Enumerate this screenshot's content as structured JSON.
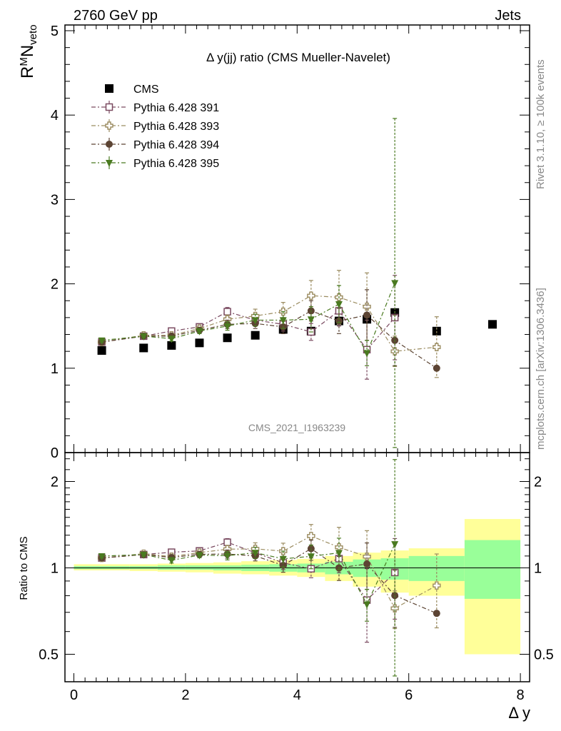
{
  "header": {
    "left": "2760 GeV pp",
    "right": "Jets"
  },
  "side_labels": {
    "rivet": "Rivet 3.1.10, ≥ 100k events",
    "mcplots": "mcplots.cern.ch [arXiv:1306.3436]"
  },
  "watermark": "CMS_2021_I1963239",
  "chart_data": {
    "type": "scatter",
    "title": "Δ y(jj) ratio (CMS Mueller-Navelet)",
    "ylabel": "R^M N_veto",
    "ylabel_parts": {
      "main": "R",
      "sup": "M",
      "main2": "N",
      "sub": "veto"
    },
    "xlabel": "Δ y",
    "xlim": [
      -0.2,
      8.0
    ],
    "ylim": [
      0,
      5.05
    ],
    "xticks": [
      "0",
      "2",
      "4",
      "6",
      "8"
    ],
    "yticks": [
      "0",
      "1",
      "2",
      "3",
      "4",
      "5"
    ],
    "legend_position": "top-left",
    "series": [
      {
        "name": "CMS",
        "color": "#000000",
        "marker": "square-filled",
        "x": [
          0.5,
          1.25,
          1.75,
          2.25,
          2.75,
          3.25,
          3.75,
          4.25,
          4.75,
          5.25,
          5.75,
          6.5,
          7.5
        ],
        "y": [
          1.21,
          1.24,
          1.27,
          1.3,
          1.36,
          1.39,
          1.46,
          1.44,
          1.56,
          1.58,
          1.66,
          1.44,
          1.52
        ]
      },
      {
        "name": "Pythia 6.428 391",
        "color": "#7a4a60",
        "marker": "square-open",
        "x": [
          0.5,
          1.25,
          1.75,
          2.25,
          2.75,
          3.25,
          3.75,
          4.25,
          4.75,
          5.25,
          5.75
        ],
        "y": [
          1.31,
          1.38,
          1.44,
          1.49,
          1.67,
          1.57,
          1.52,
          1.43,
          1.68,
          1.22,
          1.6
        ],
        "err": [
          0.02,
          0.02,
          0.03,
          0.03,
          0.05,
          0.06,
          0.08,
          0.1,
          0.18,
          0.35,
          0.5
        ]
      },
      {
        "name": "Pythia 6.428 393",
        "color": "#9b8c60",
        "marker": "cross-open",
        "x": [
          0.5,
          1.25,
          1.75,
          2.25,
          2.75,
          3.25,
          3.75,
          4.25,
          4.75,
          5.25,
          5.75,
          6.5
        ],
        "y": [
          1.31,
          1.39,
          1.39,
          1.47,
          1.58,
          1.62,
          1.67,
          1.86,
          1.84,
          1.73,
          1.2,
          1.25
        ],
        "err": [
          0.02,
          0.02,
          0.03,
          0.03,
          0.05,
          0.08,
          0.11,
          0.18,
          0.32,
          0.4,
          0.18,
          0.36
        ]
      },
      {
        "name": "Pythia 6.428 394",
        "color": "#5c4433",
        "marker": "circle-filled",
        "x": [
          0.5,
          1.25,
          1.75,
          2.25,
          2.75,
          3.25,
          3.75,
          4.25,
          4.75,
          5.25,
          5.75,
          6.5
        ],
        "y": [
          1.31,
          1.38,
          1.38,
          1.45,
          1.52,
          1.53,
          1.49,
          1.68,
          1.56,
          1.63,
          1.33,
          1.0
        ],
        "err": [
          0.02,
          0.02,
          0.03,
          0.03,
          0.05,
          0.06,
          0.08,
          0.12,
          0.15,
          0.3,
          0.3,
          0.01
        ]
      },
      {
        "name": "Pythia 6.428 395",
        "color": "#4a7a20",
        "marker": "triangle-down-filled",
        "x": [
          0.5,
          1.25,
          1.75,
          2.25,
          2.75,
          3.25,
          3.75,
          4.25,
          4.75,
          5.25,
          5.75
        ],
        "y": [
          1.33,
          1.38,
          1.35,
          1.44,
          1.5,
          1.57,
          1.57,
          1.58,
          1.76,
          1.18,
          2.01
        ],
        "err": [
          0.02,
          0.02,
          0.03,
          0.03,
          0.05,
          0.07,
          0.1,
          0.15,
          0.22,
          0.15,
          1.95
        ]
      }
    ],
    "ratio_panel": {
      "ylabel": "Ratio to CMS",
      "yticks_left": [
        "0.5",
        "1",
        "2"
      ],
      "yticks_right": [
        "0.5",
        "1",
        "2"
      ],
      "yvalues": [
        0.5,
        1,
        2
      ],
      "ylim": [
        0.41,
        2.47
      ],
      "bands": [
        {
          "x": [
            0,
            1
          ],
          "yellow": [
            0.98,
            1.03
          ],
          "green": [
            0.99,
            1.015
          ]
        },
        {
          "x": [
            1,
            1.5
          ],
          "yellow": [
            0.975,
            1.03
          ],
          "green": [
            0.99,
            1.015
          ]
        },
        {
          "x": [
            1.5,
            2
          ],
          "yellow": [
            0.97,
            1.035
          ],
          "green": [
            0.985,
            1.02
          ]
        },
        {
          "x": [
            2,
            2.5
          ],
          "yellow": [
            0.965,
            1.04
          ],
          "green": [
            0.985,
            1.02
          ]
        },
        {
          "x": [
            2.5,
            3
          ],
          "yellow": [
            0.955,
            1.045
          ],
          "green": [
            0.98,
            1.02
          ]
        },
        {
          "x": [
            3,
            3.5
          ],
          "yellow": [
            0.95,
            1.055
          ],
          "green": [
            0.975,
            1.025
          ]
        },
        {
          "x": [
            3.5,
            4
          ],
          "yellow": [
            0.94,
            1.065
          ],
          "green": [
            0.97,
            1.03
          ]
        },
        {
          "x": [
            4,
            4.5
          ],
          "yellow": [
            0.93,
            1.075
          ],
          "green": [
            0.965,
            1.035
          ]
        },
        {
          "x": [
            4.5,
            5
          ],
          "yellow": [
            0.9,
            1.1
          ],
          "green": [
            0.95,
            1.05
          ]
        },
        {
          "x": [
            5,
            5.5
          ],
          "yellow": [
            0.86,
            1.13
          ],
          "green": [
            0.93,
            1.07
          ]
        },
        {
          "x": [
            5.5,
            6
          ],
          "yellow": [
            0.82,
            1.15
          ],
          "green": [
            0.91,
            1.08
          ]
        },
        {
          "x": [
            6,
            7
          ],
          "yellow": [
            0.8,
            1.17
          ],
          "green": [
            0.9,
            1.1
          ]
        },
        {
          "x": [
            7,
            8
          ],
          "yellow": [
            0.5,
            1.48
          ],
          "green": [
            0.78,
            1.25
          ]
        }
      ]
    }
  }
}
